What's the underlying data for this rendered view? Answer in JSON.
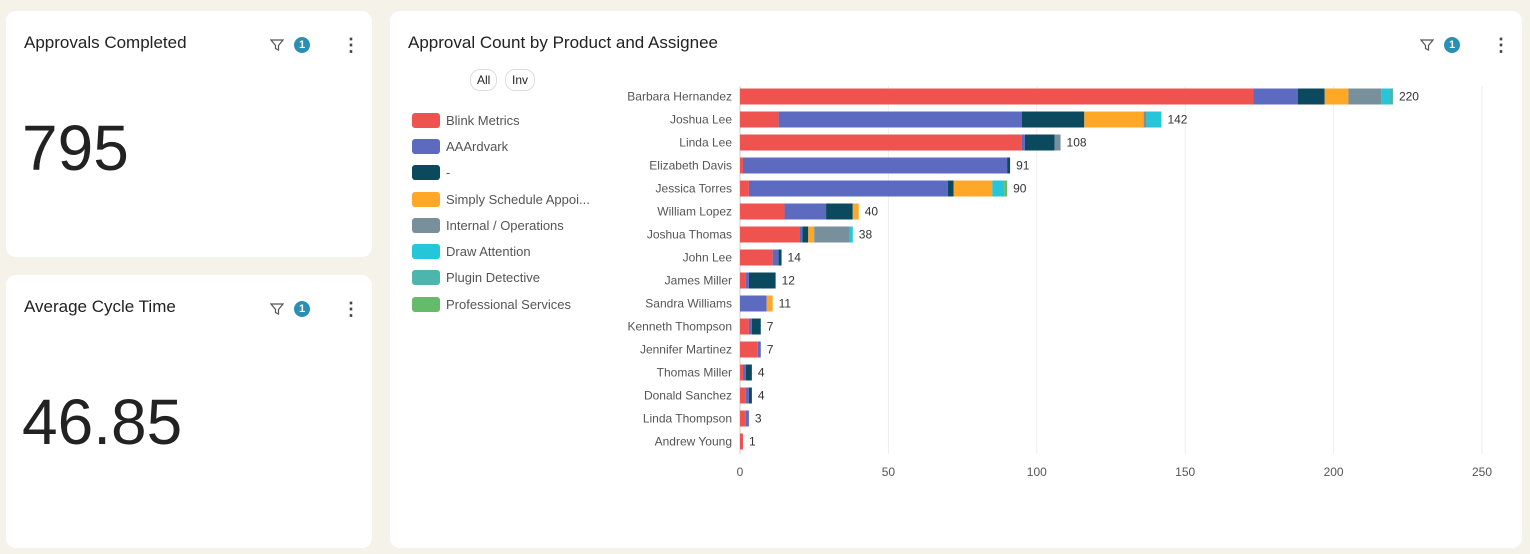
{
  "cards": {
    "approvals": {
      "title": "Approvals Completed",
      "value": "795",
      "filter_count": "1"
    },
    "cycle": {
      "title": "Average Cycle Time",
      "value": "46.85",
      "filter_count": "1"
    }
  },
  "chart_card": {
    "title": "Approval Count by Product and Assignee",
    "filter_count": "1",
    "all_label": "All",
    "inv_label": "Inv"
  },
  "icons": {
    "filter": "filter-icon",
    "more": "more-vertical-icon"
  },
  "chart_data": {
    "type": "bar",
    "orientation": "horizontal",
    "stacked": true,
    "title": "Approval Count by Product and Assignee",
    "xlim": [
      0,
      250
    ],
    "xticks": [
      0,
      50,
      100,
      150,
      200,
      250
    ],
    "grid": true,
    "legend_placement": "left",
    "categories": [
      "Barbara Hernandez",
      "Joshua Lee",
      "Linda Lee",
      "Elizabeth Davis",
      "Jessica Torres",
      "William Lopez",
      "Joshua Thomas",
      "John Lee",
      "James Miller",
      "Sandra Williams",
      "Kenneth Thompson",
      "Jennifer Martinez",
      "Thomas Miller",
      "Donald Sanchez",
      "Linda Thompson",
      "Andrew Young"
    ],
    "totals": [
      220,
      142,
      108,
      91,
      90,
      40,
      38,
      14,
      12,
      11,
      7,
      7,
      4,
      4,
      3,
      1
    ],
    "series": [
      {
        "name": "Blink Metrics",
        "color": "#ef5350",
        "values": [
          173,
          13,
          95,
          1,
          3,
          15,
          20,
          11,
          2,
          0,
          3,
          6,
          1,
          2,
          2,
          1
        ]
      },
      {
        "name": "AAArdvark",
        "color": "#5c6bc0",
        "values": [
          15,
          82,
          1,
          89,
          67,
          14,
          1,
          2,
          1,
          9,
          1,
          1,
          1,
          1,
          1,
          0
        ]
      },
      {
        "name": "-",
        "color": "#0b4a5e",
        "values": [
          9,
          21,
          10,
          1,
          2,
          9,
          2,
          1,
          9,
          0,
          3,
          0,
          2,
          1,
          0,
          0
        ]
      },
      {
        "name": "Simply Schedule Appoi...",
        "color": "#ffa726",
        "values": [
          8,
          20,
          0,
          0,
          13,
          2,
          2,
          0,
          0,
          2,
          0,
          0,
          0,
          0,
          0,
          0
        ]
      },
      {
        "name": "Internal / Operations",
        "color": "#78909c",
        "values": [
          11,
          1,
          2,
          0,
          0,
          0,
          12,
          0,
          0,
          0,
          0,
          0,
          0,
          0,
          0,
          0
        ]
      },
      {
        "name": "Draw Attention",
        "color": "#26c6da",
        "values": [
          3,
          5,
          0,
          0,
          4,
          0,
          1,
          0,
          0,
          0,
          0,
          0,
          0,
          0,
          0,
          0
        ]
      },
      {
        "name": "Plugin Detective",
        "color": "#4db6ac",
        "values": [
          1,
          0,
          0,
          0,
          0,
          0,
          0,
          0,
          0,
          0,
          0,
          0,
          0,
          0,
          0,
          0
        ]
      },
      {
        "name": "Professional Services",
        "color": "#66bb6a",
        "values": [
          0,
          0,
          0,
          0,
          1,
          0,
          0,
          0,
          0,
          0,
          0,
          0,
          0,
          0,
          0,
          0
        ]
      }
    ]
  }
}
